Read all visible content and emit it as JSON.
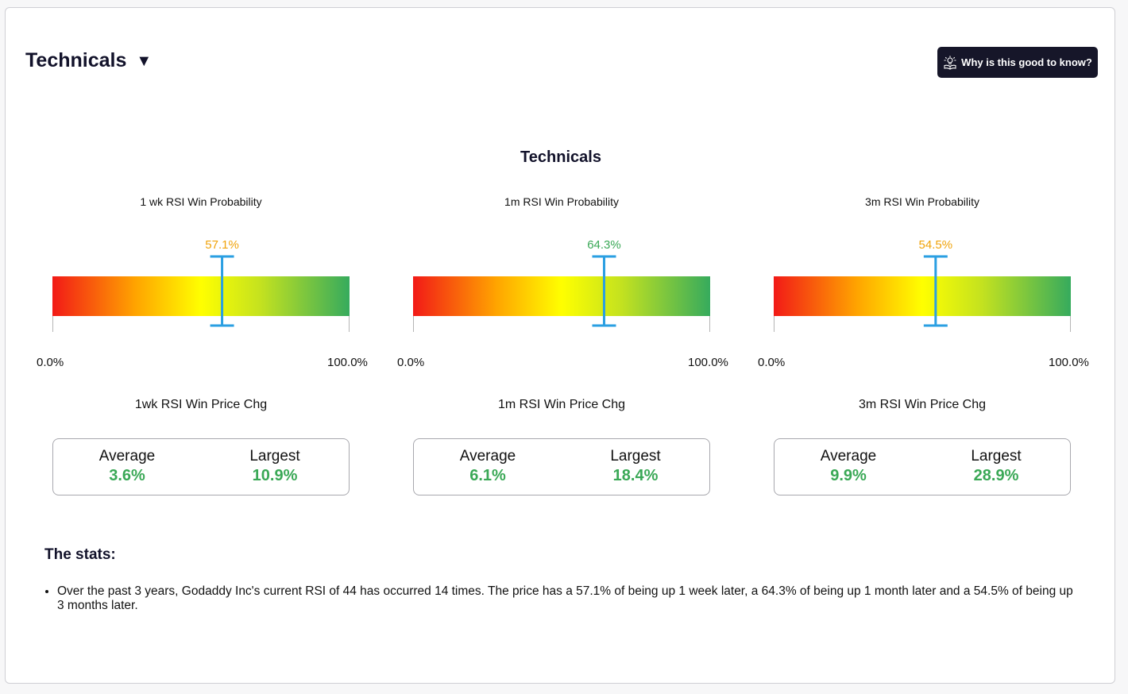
{
  "header": {
    "title": "Technicals",
    "caret": "▼",
    "why_button_label": "Why is this good to know?",
    "why_button_icon": "bulb-book-icon"
  },
  "chart_title": "Technicals",
  "gauge_colors": {
    "low": "#f21a17",
    "mid_low": "#ffa400",
    "mid": "#ffff00",
    "mid_high": "#c4e21f",
    "high": "#36ab5d",
    "marker": "#2a9fe2"
  },
  "chart_data": [
    {
      "type": "gauge",
      "title": "1 wk RSI Win Probability",
      "value": 57.1,
      "value_label": "57.1%",
      "value_color": "#f0a30a",
      "range": [
        0,
        100
      ],
      "min_label": "0.0%",
      "max_label": "100.0%"
    },
    {
      "type": "gauge",
      "title": "1m RSI Win Probability",
      "value": 64.3,
      "value_label": "64.3%",
      "value_color": "#3aa856",
      "range": [
        0,
        100
      ],
      "min_label": "0.0%",
      "max_label": "100.0%"
    },
    {
      "type": "gauge",
      "title": "3m RSI Win Probability",
      "value": 54.5,
      "value_label": "54.5%",
      "value_color": "#f0a30a",
      "range": [
        0,
        100
      ],
      "min_label": "0.0%",
      "max_label": "100.0%"
    }
  ],
  "price_change": [
    {
      "title": "1wk RSI Win Price Chg",
      "average_label": "Average",
      "average": "3.6%",
      "largest_label": "Largest",
      "largest": "10.9%"
    },
    {
      "title": "1m RSI Win Price Chg",
      "average_label": "Average",
      "average": "6.1%",
      "largest_label": "Largest",
      "largest": "18.4%"
    },
    {
      "title": "3m RSI Win Price Chg",
      "average_label": "Average",
      "average": "9.9%",
      "largest_label": "Largest",
      "largest": "28.9%"
    }
  ],
  "stats": {
    "heading": "The stats:",
    "items": [
      "Over the past 3 years, Godaddy Inc's current RSI of 44 has occurred 14 times. The price has a 57.1% of being up 1 week later, a 64.3% of being up 1 month later and a 54.5% of being up 3 months later."
    ]
  }
}
